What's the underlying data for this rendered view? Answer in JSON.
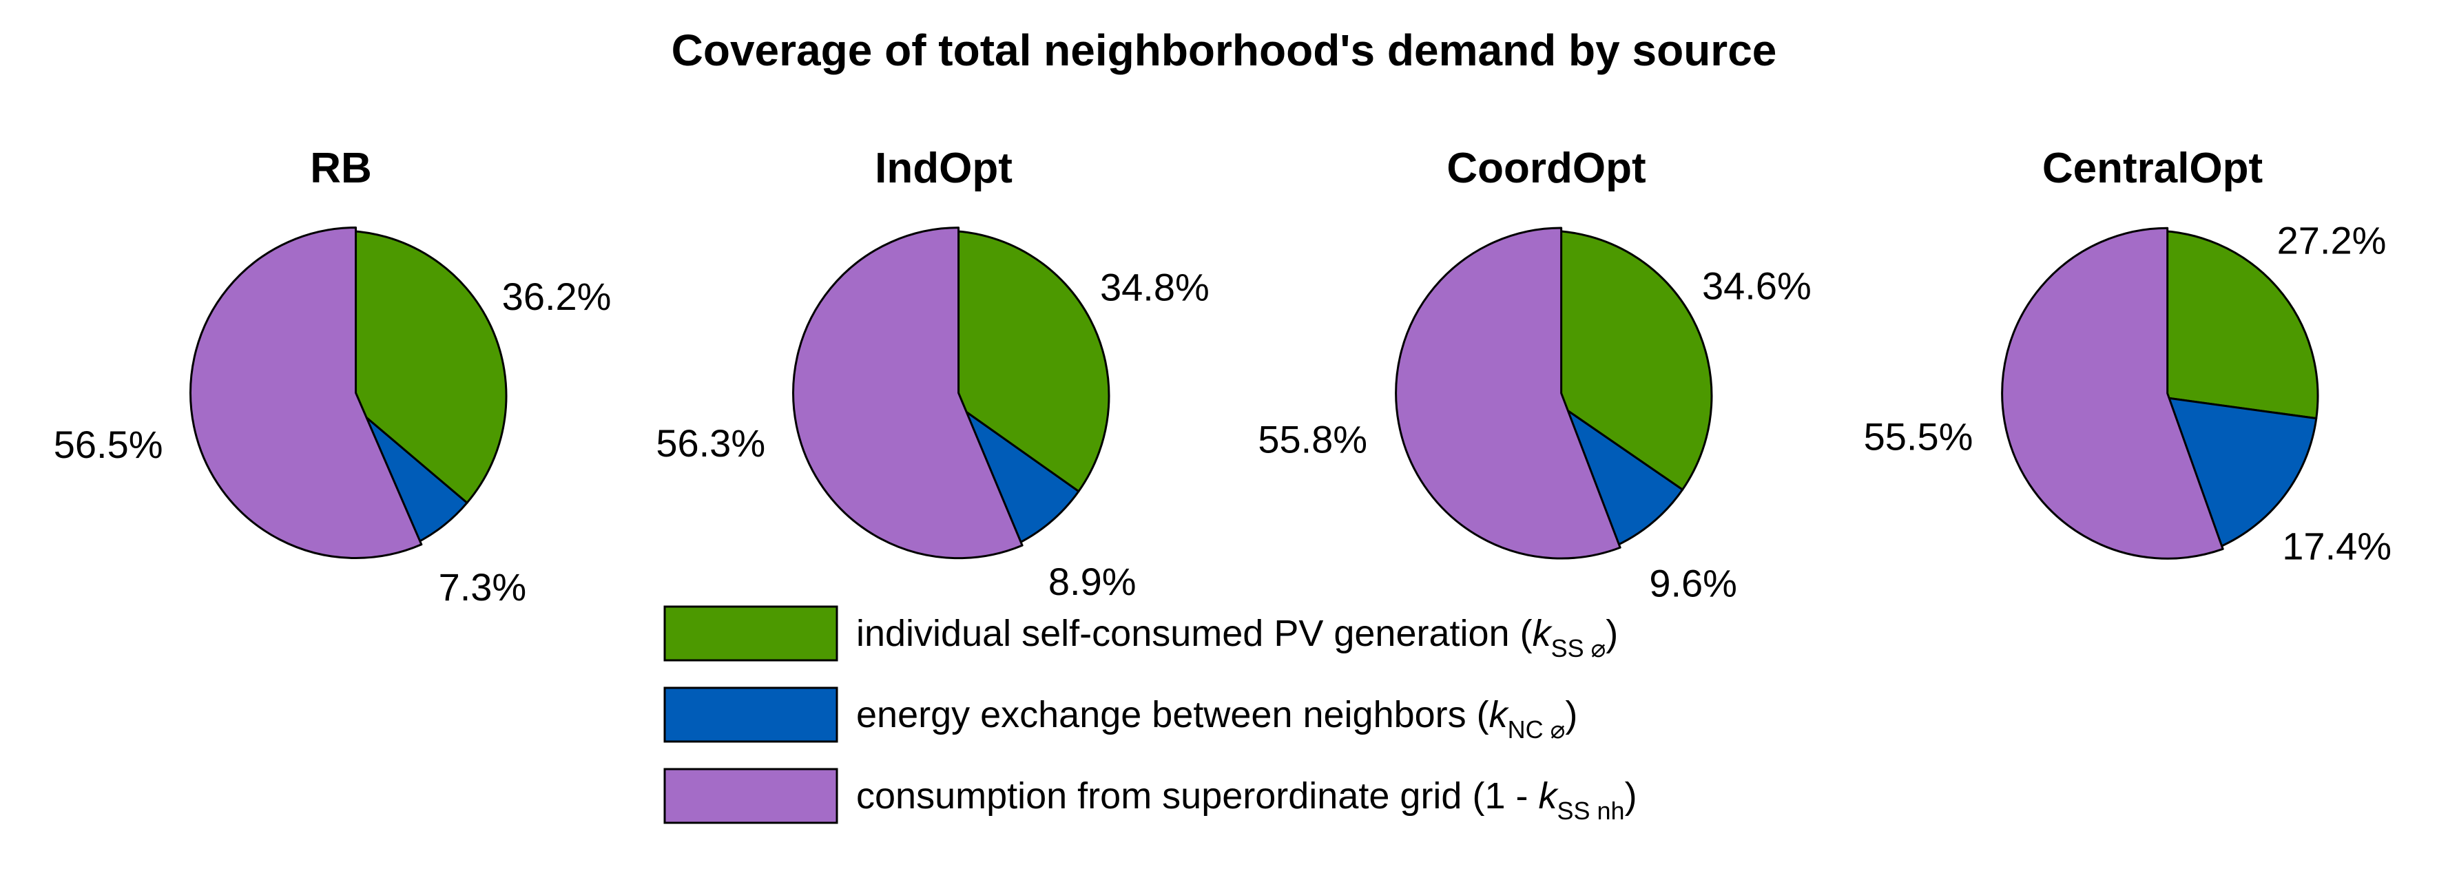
{
  "chart_data": {
    "type": "pie",
    "title": "Coverage of total neighborhood's demand by source",
    "legend_position": "bottom-center",
    "exploded": true,
    "series": [
      {
        "name": "individual self-consumed PV generation",
        "math_var": "k",
        "math_sub": "SS ⌀",
        "color": "#4c9900"
      },
      {
        "name": "energy exchange between neighbors",
        "math_var": "k",
        "math_sub": "NC ⌀",
        "color": "#005cb8"
      },
      {
        "name": "consumption from superordinate grid",
        "math_prefix": "1 - ",
        "math_var": "k",
        "math_sub": "SS nh",
        "color": "#a46cc7"
      }
    ],
    "charts": [
      {
        "title": "RB",
        "values": [
          36.2,
          7.3,
          56.5
        ],
        "labels": [
          "36.2%",
          "7.3%",
          "56.5%"
        ]
      },
      {
        "title": "IndOpt",
        "values": [
          34.8,
          8.9,
          56.3
        ],
        "labels": [
          "34.8%",
          "8.9%",
          "56.3%"
        ]
      },
      {
        "title": "CoordOpt",
        "values": [
          34.6,
          9.6,
          55.8
        ],
        "labels": [
          "34.6%",
          "9.6%",
          "55.8%"
        ]
      },
      {
        "title": "CentralOpt",
        "values": [
          27.2,
          17.4,
          55.5
        ],
        "labels": [
          "27.2%",
          "17.4%",
          "55.5%"
        ]
      }
    ]
  }
}
